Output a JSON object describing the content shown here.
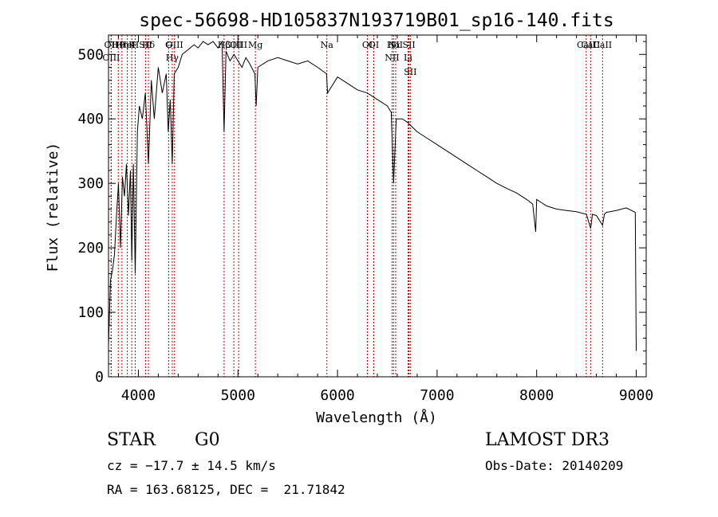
{
  "chart_data": {
    "type": "line",
    "title": "spec-56698-HD105837N193719B01_sp16-140.fits",
    "xlabel": "Wavelength (Å)",
    "ylabel": "Flux (relative)",
    "xlim": [
      3700,
      9100
    ],
    "ylim": [
      0,
      530
    ],
    "x_ticks": [
      4000,
      5000,
      6000,
      7000,
      8000,
      9000
    ],
    "x_tick_labels": [
      "4000",
      "5000",
      "6000",
      "7000",
      "8000",
      "9000"
    ],
    "y_ticks": [
      0,
      100,
      200,
      300,
      400,
      500
    ],
    "y_tick_labels": [
      "0",
      "100",
      "200",
      "300",
      "400",
      "500"
    ],
    "series": [
      {
        "name": "spectrum",
        "color": "#000000",
        "x": [
          3700,
          3720,
          3740,
          3760,
          3780,
          3800,
          3820,
          3840,
          3860,
          3880,
          3900,
          3920,
          3934,
          3950,
          3968,
          3990,
          4010,
          4040,
          4070,
          4101,
          4130,
          4160,
          4200,
          4240,
          4280,
          4300,
          4320,
          4340,
          4360,
          4400,
          4440,
          4480,
          4520,
          4560,
          4600,
          4650,
          4700,
          4750,
          4800,
          4840,
          4861,
          4880,
          4920,
          4960,
          5000,
          5040,
          5080,
          5120,
          5170,
          5183,
          5200,
          5300,
          5400,
          5500,
          5600,
          5700,
          5800,
          5890,
          5900,
          6000,
          6100,
          6200,
          6300,
          6400,
          6500,
          6540,
          6563,
          6590,
          6650,
          6700,
          6800,
          6900,
          7000,
          7100,
          7200,
          7300,
          7400,
          7500,
          7600,
          7700,
          7800,
          7900,
          7960,
          7990,
          8000,
          8050,
          8100,
          8200,
          8300,
          8400,
          8500,
          8542,
          8560,
          8600,
          8662,
          8680,
          8700,
          8800,
          8900,
          8990,
          9000
        ],
        "y": [
          50,
          150,
          165,
          190,
          250,
          300,
          200,
          310,
          280,
          330,
          250,
          320,
          180,
          330,
          160,
          380,
          420,
          400,
          440,
          330,
          460,
          400,
          480,
          440,
          470,
          380,
          430,
          330,
          470,
          480,
          500,
          505,
          510,
          515,
          510,
          520,
          515,
          520,
          510,
          520,
          380,
          505,
          490,
          500,
          490,
          480,
          495,
          485,
          470,
          420,
          480,
          490,
          495,
          490,
          485,
          490,
          480,
          470,
          440,
          465,
          455,
          445,
          440,
          430,
          420,
          410,
          300,
          400,
          400,
          395,
          380,
          370,
          360,
          350,
          340,
          330,
          320,
          310,
          300,
          292,
          285,
          275,
          268,
          225,
          275,
          270,
          265,
          260,
          258,
          256,
          252,
          230,
          252,
          250,
          235,
          252,
          255,
          258,
          262,
          255,
          40
        ]
      }
    ],
    "line_markers": [
      {
        "label": "Hθ",
        "x": 3798
      },
      {
        "label": "OII",
        "x": 3727
      },
      {
        "label": "OIII",
        "x": 3727
      },
      {
        "label": "K",
        "x": 3934
      },
      {
        "label": "HeI",
        "x": 3889
      },
      {
        "label": "Hη",
        "x": 3835
      },
      {
        "label": "H",
        "x": 3968
      },
      {
        "label": "Hδ",
        "x": 4101
      },
      {
        "label": "SII",
        "x": 4072
      },
      {
        "label": "OIII",
        "x": 4363
      },
      {
        "label": "Hγ",
        "x": 4340
      },
      {
        "label": "G",
        "x": 4304
      },
      {
        "label": "OIII",
        "x": 5007
      },
      {
        "label": "OIII",
        "x": 4959
      },
      {
        "label": "Hβ",
        "x": 4861
      },
      {
        "label": "Mg",
        "x": 5175
      },
      {
        "label": "Na",
        "x": 5893
      },
      {
        "label": "OI",
        "x": 6300
      },
      {
        "label": "OI",
        "x": 6364
      },
      {
        "label": "Hα",
        "x": 6563
      },
      {
        "label": "NII",
        "x": 6548
      },
      {
        "label": "NII",
        "x": 6584
      },
      {
        "label": "SII",
        "x": 6717
      },
      {
        "label": "Li",
        "x": 6708
      },
      {
        "label": "SII",
        "x": 6731
      },
      {
        "label": "CaII",
        "x": 8542
      },
      {
        "label": "CaII",
        "x": 8498
      },
      {
        "label": "CaII",
        "x": 8662
      }
    ]
  },
  "info": {
    "class_label": "STAR",
    "subclass": "G0",
    "survey": "LAMOST DR3",
    "cz": "cz = −17.7 ± 14.5 km/s",
    "obs_date": "Obs-Date: 20140209",
    "coords": "RA = 163.68125, DEC =  21.71842"
  },
  "colors": {
    "spectrum": "#000000",
    "markers": "#cc0000",
    "axes": "#000000"
  }
}
